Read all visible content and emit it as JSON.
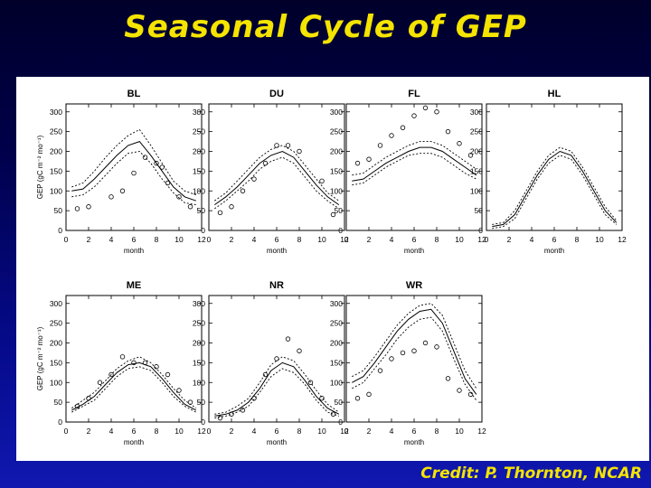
{
  "slide": {
    "title": "Seasonal Cycle of GEP",
    "credit": "Credit:  P. Thornton, NCAR",
    "title_color": "#f5e400"
  },
  "chart_data": [
    {
      "type": "line",
      "title": "BL",
      "xlabel": "month",
      "ylabel": "GEP (gC m⁻² mo⁻¹)",
      "xlim": [
        0,
        12
      ],
      "ylim": [
        0,
        320
      ],
      "xticks": [
        0,
        2,
        4,
        6,
        8,
        10,
        12
      ],
      "yticks": [
        0,
        50,
        100,
        150,
        200,
        250,
        300
      ],
      "series": [
        {
          "style": "solid",
          "x": [
            0.5,
            1.5,
            2.5,
            3.5,
            4.5,
            5.5,
            6.5,
            7.5,
            8.5,
            9.5,
            10.5,
            11.5
          ],
          "y": [
            100,
            105,
            130,
            160,
            190,
            215,
            225,
            190,
            150,
            110,
            85,
            75
          ]
        },
        {
          "style": "dashed",
          "x": [
            0.5,
            1.5,
            2.5,
            3.5,
            4.5,
            5.5,
            6.5,
            7.5,
            8.5,
            9.5,
            10.5,
            11.5
          ],
          "y": [
            110,
            120,
            150,
            185,
            215,
            240,
            255,
            215,
            170,
            125,
            100,
            90
          ]
        },
        {
          "style": "dashed",
          "x": [
            0.5,
            1.5,
            2.5,
            3.5,
            4.5,
            5.5,
            6.5,
            7.5,
            8.5,
            9.5,
            10.5,
            11.5
          ],
          "y": [
            85,
            90,
            110,
            140,
            170,
            195,
            200,
            170,
            130,
            95,
            70,
            65
          ]
        },
        {
          "style": "points",
          "x": [
            1,
            2,
            4,
            5,
            6,
            7,
            8,
            8.5,
            9,
            10,
            11
          ],
          "y": [
            55,
            60,
            85,
            100,
            145,
            185,
            170,
            160,
            120,
            85,
            60
          ]
        }
      ]
    },
    {
      "type": "line",
      "title": "DU",
      "xlabel": "month",
      "ylabel": "",
      "xlim": [
        0,
        12
      ],
      "ylim": [
        0,
        320
      ],
      "xticks": [
        0,
        2,
        4,
        6,
        8,
        10,
        12
      ],
      "yticks": [
        0,
        50,
        100,
        150,
        200,
        250,
        300
      ],
      "series": [
        {
          "style": "solid",
          "x": [
            0.5,
            1.5,
            2.5,
            3.5,
            4.5,
            5.5,
            6.5,
            7.5,
            8.5,
            9.5,
            10.5,
            11.5
          ],
          "y": [
            65,
            85,
            110,
            140,
            170,
            190,
            200,
            185,
            150,
            115,
            85,
            65
          ]
        },
        {
          "style": "dashed",
          "x": [
            0.5,
            1.5,
            2.5,
            3.5,
            4.5,
            5.5,
            6.5,
            7.5,
            8.5,
            9.5,
            10.5,
            11.5
          ],
          "y": [
            75,
            95,
            125,
            155,
            185,
            205,
            215,
            200,
            165,
            130,
            95,
            75
          ]
        },
        {
          "style": "dashed",
          "x": [
            0.5,
            1.5,
            2.5,
            3.5,
            4.5,
            5.5,
            6.5,
            7.5,
            8.5,
            9.5,
            10.5,
            11.5
          ],
          "y": [
            55,
            75,
            100,
            125,
            155,
            175,
            185,
            170,
            135,
            100,
            75,
            55
          ]
        },
        {
          "style": "points",
          "x": [
            1,
            2,
            3,
            4,
            5,
            6,
            7,
            8,
            10,
            11
          ],
          "y": [
            45,
            60,
            100,
            130,
            170,
            215,
            215,
            200,
            125,
            40
          ]
        }
      ]
    },
    {
      "type": "line",
      "title": "FL",
      "xlabel": "month",
      "ylabel": "",
      "xlim": [
        0,
        12
      ],
      "ylim": [
        0,
        320
      ],
      "xticks": [
        0,
        2,
        4,
        6,
        8,
        10,
        12
      ],
      "yticks": [
        0,
        50,
        100,
        150,
        200,
        250,
        300
      ],
      "series": [
        {
          "style": "solid",
          "x": [
            0.5,
            1.5,
            2.5,
            3.5,
            4.5,
            5.5,
            6.5,
            7.5,
            8.5,
            9.5,
            10.5,
            11.5
          ],
          "y": [
            125,
            130,
            150,
            170,
            185,
            200,
            210,
            210,
            200,
            180,
            160,
            140
          ]
        },
        {
          "style": "dashed",
          "x": [
            0.5,
            1.5,
            2.5,
            3.5,
            4.5,
            5.5,
            6.5,
            7.5,
            8.5,
            9.5,
            10.5,
            11.5
          ],
          "y": [
            140,
            145,
            165,
            185,
            200,
            215,
            225,
            225,
            215,
            195,
            175,
            155
          ]
        },
        {
          "style": "dashed",
          "x": [
            0.5,
            1.5,
            2.5,
            3.5,
            4.5,
            5.5,
            6.5,
            7.5,
            8.5,
            9.5,
            10.5,
            11.5
          ],
          "y": [
            115,
            120,
            140,
            160,
            175,
            190,
            195,
            195,
            185,
            165,
            145,
            130
          ]
        },
        {
          "style": "points",
          "x": [
            1,
            2,
            3,
            4,
            5,
            6,
            7,
            8,
            9,
            10,
            11
          ],
          "y": [
            170,
            180,
            215,
            240,
            260,
            290,
            310,
            300,
            250,
            220,
            190
          ]
        }
      ]
    },
    {
      "type": "line",
      "title": "HL",
      "xlabel": "month",
      "ylabel": "",
      "xlim": [
        0,
        12
      ],
      "ylim": [
        0,
        320
      ],
      "xticks": [
        0,
        2,
        4,
        6,
        8,
        10,
        12
      ],
      "yticks": [
        0,
        50,
        100,
        150,
        200,
        250,
        300
      ],
      "series": [
        {
          "style": "solid",
          "x": [
            0.5,
            1.5,
            2.5,
            3.5,
            4.5,
            5.5,
            6.5,
            7.5,
            8.5,
            9.5,
            10.5,
            11.5
          ],
          "y": [
            10,
            15,
            40,
            90,
            140,
            180,
            200,
            190,
            150,
            100,
            50,
            20
          ]
        },
        {
          "style": "dashed",
          "x": [
            0.5,
            1.5,
            2.5,
            3.5,
            4.5,
            5.5,
            6.5,
            7.5,
            8.5,
            9.5,
            10.5,
            11.5
          ],
          "y": [
            15,
            20,
            50,
            100,
            150,
            190,
            210,
            200,
            160,
            110,
            60,
            25
          ]
        },
        {
          "style": "dashed",
          "x": [
            0.5,
            1.5,
            2.5,
            3.5,
            4.5,
            5.5,
            6.5,
            7.5,
            8.5,
            9.5,
            10.5,
            11.5
          ],
          "y": [
            5,
            10,
            30,
            80,
            130,
            170,
            190,
            180,
            140,
            90,
            40,
            15
          ]
        }
      ]
    },
    {
      "type": "line",
      "title": "ME",
      "xlabel": "month",
      "ylabel": "GEP (gC m⁻² mo⁻¹)",
      "xlim": [
        0,
        12
      ],
      "ylim": [
        0,
        320
      ],
      "xticks": [
        0,
        2,
        4,
        6,
        8,
        10,
        12
      ],
      "yticks": [
        0,
        50,
        100,
        150,
        200,
        250,
        300
      ],
      "series": [
        {
          "style": "solid",
          "x": [
            0.5,
            1.5,
            2.5,
            3.5,
            4.5,
            5.5,
            6.5,
            7.5,
            8.5,
            9.5,
            10.5,
            11.5
          ],
          "y": [
            30,
            45,
            65,
            95,
            125,
            145,
            150,
            140,
            110,
            75,
            45,
            30
          ]
        },
        {
          "style": "dashed",
          "x": [
            0.5,
            1.5,
            2.5,
            3.5,
            4.5,
            5.5,
            6.5,
            7.5,
            8.5,
            9.5,
            10.5,
            11.5
          ],
          "y": [
            35,
            55,
            75,
            105,
            135,
            155,
            165,
            150,
            120,
            85,
            55,
            35
          ]
        },
        {
          "style": "dashed",
          "x": [
            0.5,
            1.5,
            2.5,
            3.5,
            4.5,
            5.5,
            6.5,
            7.5,
            8.5,
            9.5,
            10.5,
            11.5
          ],
          "y": [
            25,
            40,
            55,
            85,
            115,
            135,
            140,
            130,
            100,
            65,
            40,
            25
          ]
        },
        {
          "style": "points",
          "x": [
            1,
            2,
            3,
            4,
            5,
            6,
            7,
            8,
            9,
            10,
            11
          ],
          "y": [
            40,
            60,
            100,
            120,
            165,
            150,
            150,
            140,
            120,
            80,
            50
          ]
        }
      ]
    },
    {
      "type": "line",
      "title": "NR",
      "xlabel": "month",
      "ylabel": "",
      "xlim": [
        0,
        12
      ],
      "ylim": [
        0,
        320
      ],
      "xticks": [
        0,
        2,
        4,
        6,
        8,
        10,
        12
      ],
      "yticks": [
        0,
        50,
        100,
        150,
        200,
        250,
        300
      ],
      "series": [
        {
          "style": "solid",
          "x": [
            0.5,
            1.5,
            2.5,
            3.5,
            4.5,
            5.5,
            6.5,
            7.5,
            8.5,
            9.5,
            10.5,
            11.5
          ],
          "y": [
            15,
            20,
            30,
            50,
            85,
            130,
            150,
            140,
            105,
            65,
            35,
            20
          ]
        },
        {
          "style": "dashed",
          "x": [
            0.5,
            1.5,
            2.5,
            3.5,
            4.5,
            5.5,
            6.5,
            7.5,
            8.5,
            9.5,
            10.5,
            11.5
          ],
          "y": [
            20,
            25,
            40,
            60,
            100,
            145,
            165,
            155,
            120,
            80,
            45,
            25
          ]
        },
        {
          "style": "dashed",
          "x": [
            0.5,
            1.5,
            2.5,
            3.5,
            4.5,
            5.5,
            6.5,
            7.5,
            8.5,
            9.5,
            10.5,
            11.5
          ],
          "y": [
            10,
            15,
            25,
            40,
            75,
            115,
            135,
            125,
            95,
            55,
            25,
            15
          ]
        },
        {
          "style": "points",
          "x": [
            1,
            2,
            3,
            4,
            5,
            6,
            7,
            8,
            9,
            10,
            11
          ],
          "y": [
            10,
            20,
            30,
            60,
            120,
            160,
            210,
            180,
            100,
            60,
            20
          ]
        }
      ]
    },
    {
      "type": "line",
      "title": "WR",
      "xlabel": "month",
      "ylabel": "",
      "xlim": [
        0,
        12
      ],
      "ylim": [
        0,
        320
      ],
      "xticks": [
        0,
        2,
        4,
        6,
        8,
        10,
        12
      ],
      "yticks": [
        0,
        50,
        100,
        150,
        200,
        250,
        300
      ],
      "series": [
        {
          "style": "solid",
          "x": [
            0.5,
            1.5,
            2.5,
            3.5,
            4.5,
            5.5,
            6.5,
            7.5,
            8.5,
            9.5,
            10.5,
            11.5
          ],
          "y": [
            100,
            115,
            150,
            190,
            230,
            260,
            280,
            285,
            250,
            180,
            110,
            70
          ]
        },
        {
          "style": "dashed",
          "x": [
            0.5,
            1.5,
            2.5,
            3.5,
            4.5,
            5.5,
            6.5,
            7.5,
            8.5,
            9.5,
            10.5,
            11.5
          ],
          "y": [
            115,
            130,
            165,
            205,
            245,
            275,
            295,
            300,
            270,
            200,
            130,
            85
          ]
        },
        {
          "style": "dashed",
          "x": [
            0.5,
            1.5,
            2.5,
            3.5,
            4.5,
            5.5,
            6.5,
            7.5,
            8.5,
            9.5,
            10.5,
            11.5
          ],
          "y": [
            85,
            100,
            135,
            170,
            210,
            240,
            260,
            265,
            230,
            160,
            95,
            55
          ]
        },
        {
          "style": "points",
          "x": [
            1,
            2,
            3,
            4,
            5,
            6,
            7,
            8,
            9,
            10,
            11
          ],
          "y": [
            60,
            70,
            130,
            160,
            175,
            180,
            200,
            190,
            110,
            80,
            70
          ]
        }
      ]
    }
  ]
}
